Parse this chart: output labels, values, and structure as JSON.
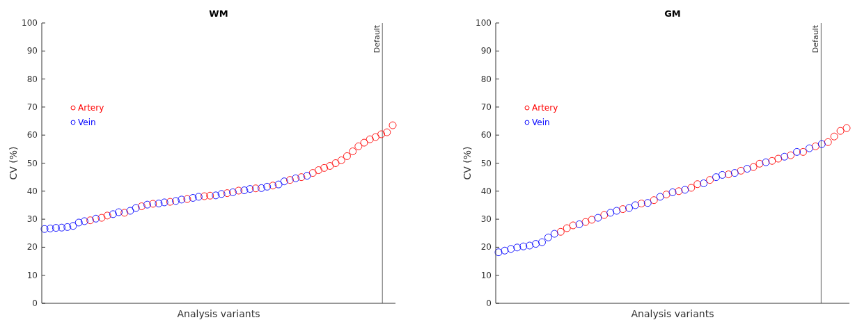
{
  "chart_data": [
    {
      "type": "scatter",
      "title": "WM",
      "xlabel": "Analysis variants",
      "ylabel": "CV (%)",
      "categories": [
        null,
        null,
        null,
        null,
        null,
        null,
        null,
        null,
        null,
        null,
        null,
        null,
        null,
        null,
        null,
        null,
        null,
        null,
        null,
        null,
        null,
        null,
        null,
        null,
        null,
        null,
        null,
        null,
        null,
        null,
        null,
        null,
        null,
        null,
        null,
        null,
        null,
        null,
        null,
        null,
        null,
        null,
        null,
        null,
        null,
        null,
        null,
        null,
        null,
        null,
        null,
        null,
        null,
        null,
        null,
        null,
        null,
        null,
        null,
        null,
        null,
        null
      ],
      "ylim": [
        0,
        100
      ],
      "yticks": [
        0,
        10,
        20,
        30,
        40,
        50,
        60,
        70,
        80,
        90,
        100
      ],
      "marker": "circle",
      "legend": "top left",
      "tick_labels": "y",
      "annotations": [
        "Default"
      ],
      "series": [
        {
          "name": "Artery",
          "color": "#ff0000",
          "values": [
            null,
            null,
            null,
            null,
            null,
            null,
            null,
            null,
            29.6,
            null,
            30.5,
            31.3,
            null,
            null,
            32.3,
            null,
            null,
            34.6,
            null,
            35.5,
            null,
            null,
            36.2,
            null,
            null,
            37.2,
            null,
            null,
            38.2,
            38.4,
            null,
            null,
            39.3,
            null,
            40.2,
            null,
            null,
            41.0,
            null,
            null,
            42.0,
            null,
            null,
            44.0,
            null,
            45.0,
            null,
            46.5,
            47.5,
            48.3,
            49.0,
            50.0,
            51.0,
            52.5,
            54.2,
            56.0,
            57.3,
            58.5,
            59.3,
            60.3,
            61.0,
            63.5
          ]
        },
        {
          "name": "Vein",
          "color": "#0000ff",
          "values": [
            26.5,
            26.7,
            26.9,
            27.0,
            27.2,
            27.6,
            28.8,
            29.3,
            null,
            30.2,
            null,
            null,
            31.8,
            32.5,
            null,
            33.0,
            34.0,
            null,
            35.2,
            null,
            35.6,
            36.0,
            null,
            36.5,
            37.0,
            null,
            37.6,
            38.0,
            null,
            null,
            38.5,
            39.0,
            null,
            39.6,
            null,
            40.3,
            40.8,
            null,
            41.1,
            41.6,
            null,
            42.4,
            43.5,
            null,
            44.6,
            null,
            45.5,
            null,
            null,
            null,
            null,
            null,
            null,
            null,
            null,
            null,
            null,
            null,
            null,
            null,
            null,
            null
          ]
        }
      ]
    },
    {
      "type": "scatter",
      "title": "GM",
      "xlabel": "Analysis variants",
      "ylabel": "CV (%)",
      "categories": [
        null,
        null,
        null,
        null,
        null,
        null,
        null,
        null,
        null,
        null,
        null,
        null,
        null,
        null,
        null,
        null,
        null,
        null,
        null,
        null,
        null,
        null,
        null,
        null,
        null,
        null,
        null,
        null,
        null,
        null,
        null,
        null,
        null,
        null,
        null,
        null,
        null,
        null,
        null,
        null,
        null,
        null,
        null,
        null,
        null,
        null,
        null,
        null,
        null,
        null,
        null,
        null,
        null,
        null,
        null,
        null,
        null
      ],
      "ylim": [
        0,
        100
      ],
      "yticks": [
        0,
        10,
        20,
        30,
        40,
        50,
        60,
        70,
        80,
        90,
        100
      ],
      "marker": "circle",
      "legend": "top left",
      "tick_labels": "y",
      "annotations": [
        "Default"
      ],
      "series": [
        {
          "name": "Artery",
          "color": "#ff0000",
          "values": [
            null,
            null,
            null,
            null,
            null,
            null,
            null,
            null,
            null,
            null,
            25.5,
            26.8,
            27.8,
            null,
            29.0,
            29.8,
            null,
            31.5,
            null,
            null,
            33.6,
            null,
            null,
            35.6,
            null,
            36.8,
            null,
            38.8,
            null,
            40.0,
            null,
            41.2,
            42.5,
            null,
            44.0,
            null,
            null,
            46.0,
            null,
            47.3,
            null,
            48.6,
            49.8,
            null,
            50.8,
            51.6,
            null,
            52.8,
            null,
            54.0,
            null,
            56.0,
            null,
            57.5,
            59.5,
            61.5,
            62.5
          ]
        },
        {
          "name": "Vein",
          "color": "#0000ff",
          "values": [
            18.2,
            18.8,
            19.4,
            19.9,
            20.3,
            20.6,
            21.2,
            21.8,
            23.5,
            24.8,
            null,
            null,
            null,
            28.2,
            null,
            null,
            30.5,
            null,
            32.3,
            33.0,
            null,
            34.0,
            35.0,
            null,
            35.8,
            null,
            38.0,
            null,
            39.6,
            null,
            40.5,
            null,
            null,
            42.8,
            null,
            45.0,
            45.8,
            null,
            46.5,
            null,
            48.0,
            null,
            null,
            50.3,
            null,
            null,
            52.3,
            null,
            54.0,
            null,
            55.3,
            null,
            56.8,
            null,
            null,
            null,
            null
          ]
        }
      ]
    }
  ]
}
